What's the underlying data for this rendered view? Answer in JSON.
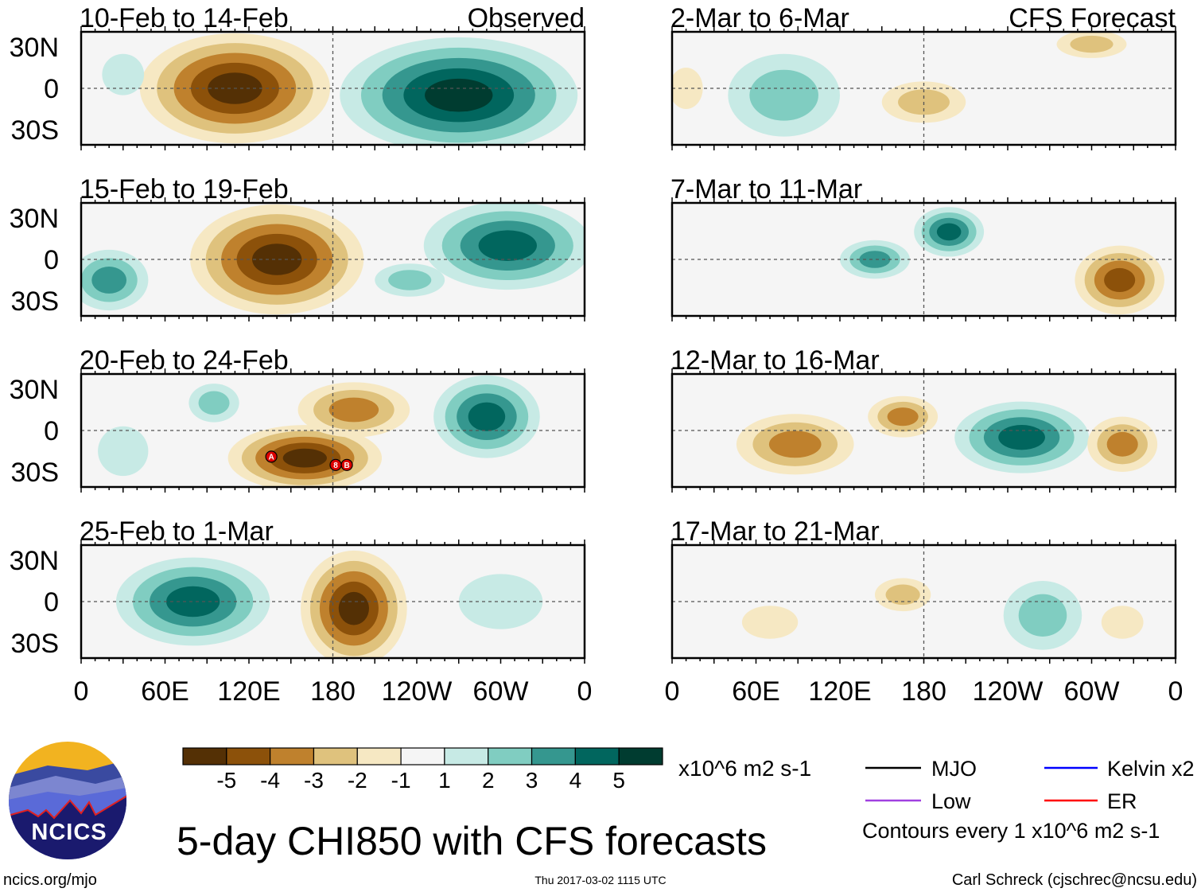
{
  "colors": [
    "#543005",
    "#8c510a",
    "#bf812d",
    "#dfc27d",
    "#f6e8c3",
    "#f5f5f5",
    "#c7eae5",
    "#80cdc1",
    "#35978f",
    "#01665e",
    "#003c30"
  ],
  "lat_labels": [
    "30N",
    "0",
    "30S"
  ],
  "lon_labels": [
    "0",
    "60E",
    "120E",
    "180",
    "120W",
    "60W",
    "0"
  ],
  "panels": [
    {
      "title": "10-Feb to 14-Feb",
      "corner": "Observed",
      "anoms": [
        {
          "lon": 110,
          "lat": 0,
          "rlon": 68,
          "rlat": 40,
          "v": -5
        },
        {
          "lon": 270,
          "lat": -5,
          "rlon": 85,
          "rlat": 42,
          "v": 5
        },
        {
          "lon": 30,
          "lat": 10,
          "rlon": 15,
          "rlat": 15,
          "v": 1
        }
      ]
    },
    {
      "title": "15-Feb to 19-Feb",
      "corner": "",
      "anoms": [
        {
          "lon": 140,
          "lat": 0,
          "rlon": 62,
          "rlat": 40,
          "v": -5
        },
        {
          "lon": 305,
          "lat": 10,
          "rlon": 60,
          "rlat": 32,
          "v": 4
        },
        {
          "lon": 20,
          "lat": -15,
          "rlon": 28,
          "rlat": 22,
          "v": 3
        },
        {
          "lon": 235,
          "lat": -15,
          "rlon": 25,
          "rlat": 12,
          "v": 2
        }
      ]
    },
    {
      "title": "20-Feb to 24-Feb",
      "corner": "",
      "anoms": [
        {
          "lon": 160,
          "lat": -20,
          "rlon": 55,
          "rlat": 24,
          "v": -5
        },
        {
          "lon": 195,
          "lat": 15,
          "rlon": 40,
          "rlat": 20,
          "v": -3
        },
        {
          "lon": 290,
          "lat": 10,
          "rlon": 38,
          "rlat": 30,
          "v": 4
        },
        {
          "lon": 95,
          "lat": 20,
          "rlon": 18,
          "rlat": 14,
          "v": 2
        },
        {
          "lon": 30,
          "lat": -15,
          "rlon": 18,
          "rlat": 18,
          "v": 1
        }
      ],
      "storms": [
        {
          "lon": 136,
          "lat": -19,
          "label": "A"
        },
        {
          "lon": 182,
          "lat": -25,
          "label": "8"
        },
        {
          "lon": 190,
          "lat": -25,
          "label": "B"
        }
      ]
    },
    {
      "title": "25-Feb to 1-Mar",
      "corner": "",
      "anoms": [
        {
          "lon": 80,
          "lat": 0,
          "rlon": 55,
          "rlat": 32,
          "v": 4
        },
        {
          "lon": 195,
          "lat": -5,
          "rlon": 38,
          "rlat": 42,
          "v": -5
        },
        {
          "lon": 300,
          "lat": 0,
          "rlon": 30,
          "rlat": 20,
          "v": 1
        }
      ]
    },
    {
      "title": "2-Mar to 6-Mar",
      "corner": "CFS Forecast",
      "anoms": [
        {
          "lon": 80,
          "lat": -5,
          "rlon": 40,
          "rlat": 30,
          "v": 2
        },
        {
          "lon": 180,
          "lat": -10,
          "rlon": 30,
          "rlat": 15,
          "v": -2
        },
        {
          "lon": 300,
          "lat": 32,
          "rlon": 25,
          "rlat": 10,
          "v": -2
        },
        {
          "lon": 10,
          "lat": 0,
          "rlon": 12,
          "rlat": 15,
          "v": -1
        }
      ]
    },
    {
      "title": "7-Mar to 11-Mar",
      "corner": "",
      "anoms": [
        {
          "lon": 198,
          "lat": 20,
          "rlon": 25,
          "rlat": 18,
          "v": 4
        },
        {
          "lon": 145,
          "lat": 0,
          "rlon": 25,
          "rlat": 14,
          "v": 3
        },
        {
          "lon": 320,
          "lat": -15,
          "rlon": 32,
          "rlat": 25,
          "v": -4
        }
      ]
    },
    {
      "title": "12-Mar to 16-Mar",
      "corner": "",
      "anoms": [
        {
          "lon": 250,
          "lat": -5,
          "rlon": 48,
          "rlat": 26,
          "v": 4
        },
        {
          "lon": 88,
          "lat": -10,
          "rlon": 42,
          "rlat": 22,
          "v": -3
        },
        {
          "lon": 322,
          "lat": -10,
          "rlon": 25,
          "rlat": 20,
          "v": -3
        },
        {
          "lon": 165,
          "lat": 10,
          "rlon": 25,
          "rlat": 15,
          "v": -3
        }
      ]
    },
    {
      "title": "17-Mar to 21-Mar",
      "corner": "",
      "anoms": [
        {
          "lon": 265,
          "lat": -10,
          "rlon": 28,
          "rlat": 25,
          "v": 2
        },
        {
          "lon": 165,
          "lat": 5,
          "rlon": 20,
          "rlat": 12,
          "v": -2
        },
        {
          "lon": 322,
          "lat": -15,
          "rlon": 15,
          "rlat": 12,
          "v": -1
        },
        {
          "lon": 70,
          "lat": -15,
          "rlon": 20,
          "rlat": 12,
          "v": -1
        }
      ]
    }
  ],
  "colorbar": {
    "ticks": [
      "-5",
      "-4",
      "-3",
      "-2",
      "-1",
      "1",
      "2",
      "3",
      "4",
      "5"
    ],
    "units": "x10^6 m2 s-1"
  },
  "legend": {
    "items": [
      {
        "label": "MJO",
        "color": "#000000"
      },
      {
        "label": "Kelvin x2",
        "color": "#0000ff"
      },
      {
        "label": "Low",
        "color": "#a040e0"
      },
      {
        "label": "ER",
        "color": "#ff0000"
      }
    ],
    "contours": "Contours every 1 x10^6 m2 s-1"
  },
  "title": "5-day CHI850 with CFS forecasts",
  "logo_text": "NCICS",
  "url": "ncics.org/mjo",
  "timestamp": "Thu 2017-03-02 1115 UTC",
  "author": "Carl Schreck (cjschrec@ncsu.edu)"
}
